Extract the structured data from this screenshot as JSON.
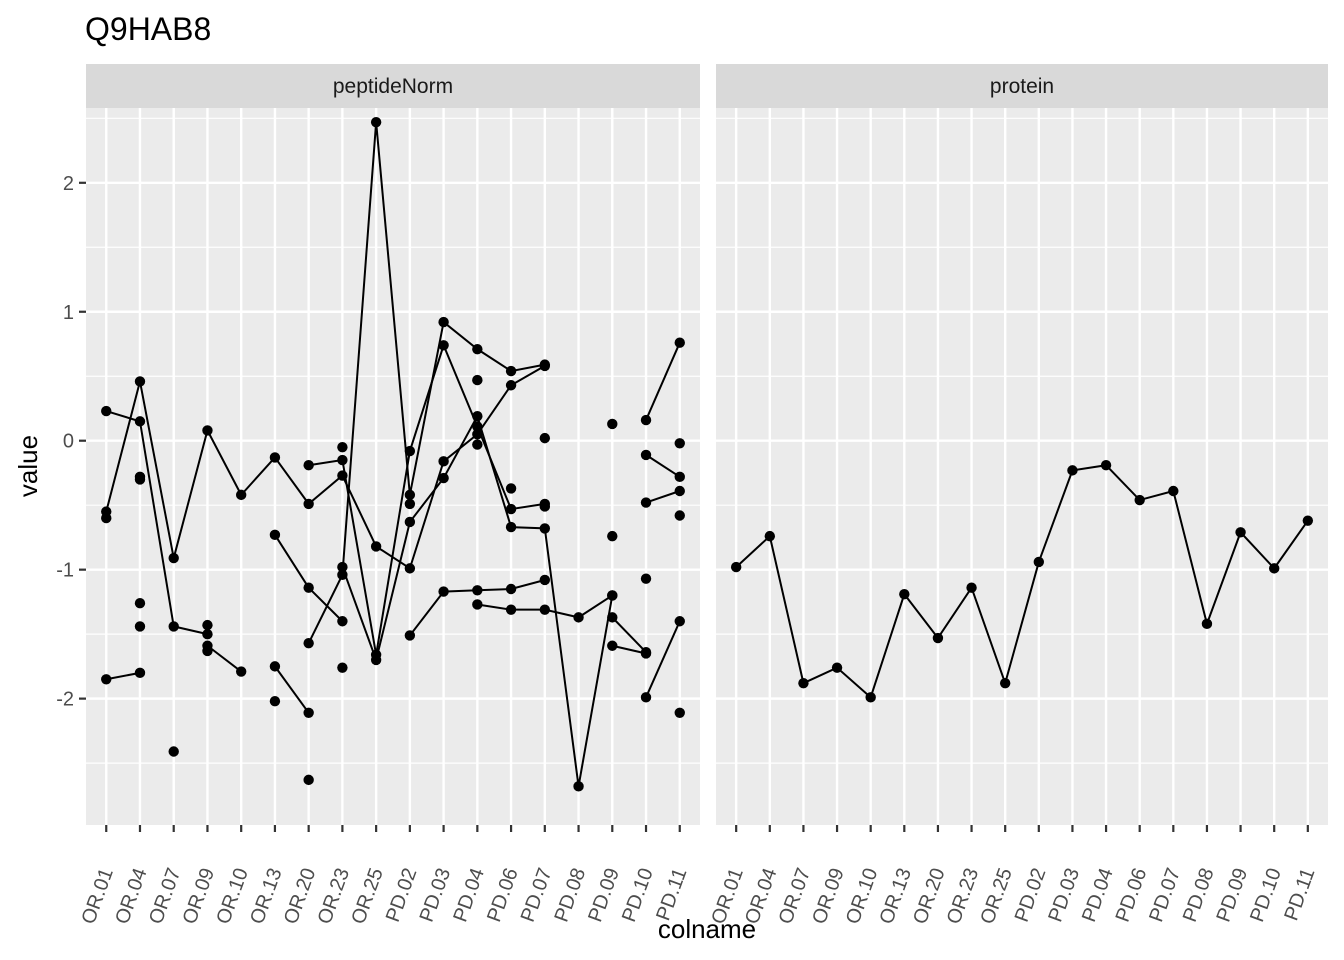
{
  "chart_data": {
    "type": "line",
    "title": "Q9HAB8",
    "xlabel": "colname",
    "ylabel": "value",
    "ylim": [
      -2.98,
      2.58
    ],
    "y_ticks": [
      -2,
      -1,
      0,
      1,
      2
    ],
    "grid": true,
    "categories": [
      "OR.01",
      "OR.04",
      "OR.07",
      "OR.09",
      "OR.10",
      "OR.13",
      "OR.20",
      "OR.23",
      "OR.25",
      "PD.02",
      "PD.03",
      "PD.04",
      "PD.06",
      "PD.07",
      "PD.08",
      "PD.09",
      "PD.10",
      "PD.11"
    ],
    "facets": [
      {
        "label": "peptideNorm",
        "series": [
          {
            "values": [
              0.23,
              0.15,
              -1.44,
              -1.5,
              null,
              null,
              -1.57,
              -1.04,
              2.47,
              -0.42,
              0.92,
              0.71,
              0.54,
              0.59,
              null,
              -1.37,
              -1.64,
              null
            ]
          },
          {
            "values": [
              -0.55,
              0.46,
              -0.91,
              0.08,
              -0.42,
              -0.13,
              -0.49,
              -0.27,
              -0.82,
              -0.99,
              -0.16,
              0.05,
              0.43,
              0.58,
              null,
              null,
              null,
              null
            ]
          },
          {
            "values": [
              -1.85,
              -1.8,
              null,
              -1.59,
              -1.79,
              null,
              null,
              null,
              null,
              null,
              null,
              null,
              null,
              null,
              null,
              null,
              null,
              null
            ]
          },
          {
            "values": [
              null,
              null,
              null,
              null,
              null,
              -0.73,
              -1.14,
              -1.4,
              null,
              null,
              null,
              null,
              null,
              null,
              null,
              null,
              null,
              null
            ]
          },
          {
            "values": [
              null,
              null,
              null,
              null,
              null,
              -1.75,
              -2.11,
              null,
              null,
              null,
              null,
              null,
              null,
              null,
              null,
              null,
              null,
              null
            ]
          },
          {
            "values": [
              null,
              null,
              null,
              null,
              null,
              null,
              -0.19,
              -0.15,
              -1.66,
              -0.08,
              0.74,
              0.11,
              -0.53,
              -0.49,
              null,
              null,
              null,
              null
            ]
          },
          {
            "values": [
              null,
              null,
              null,
              null,
              null,
              null,
              null,
              -0.98,
              -1.7,
              -0.63,
              -0.29,
              0.19,
              -0.67,
              -0.68,
              -2.68,
              -1.2,
              null,
              null
            ]
          },
          {
            "values": [
              null,
              null,
              null,
              null,
              null,
              null,
              null,
              null,
              null,
              -1.51,
              -1.17,
              -1.16,
              -1.15,
              -1.08,
              null,
              null,
              null,
              null
            ]
          },
          {
            "values": [
              null,
              null,
              null,
              null,
              null,
              null,
              null,
              null,
              null,
              null,
              null,
              -1.27,
              -1.31,
              -1.31,
              -1.37,
              -1.2,
              null,
              null
            ]
          },
          {
            "values": [
              null,
              null,
              null,
              null,
              null,
              null,
              null,
              null,
              null,
              null,
              null,
              null,
              null,
              null,
              null,
              -1.59,
              -1.65,
              null
            ]
          },
          {
            "values": [
              null,
              null,
              null,
              null,
              null,
              null,
              null,
              null,
              null,
              null,
              null,
              null,
              null,
              null,
              null,
              null,
              0.16,
              0.76
            ]
          },
          {
            "values": [
              null,
              null,
              null,
              null,
              null,
              null,
              null,
              null,
              null,
              null,
              null,
              null,
              null,
              null,
              null,
              null,
              -0.11,
              -0.28
            ]
          },
          {
            "values": [
              null,
              null,
              null,
              null,
              null,
              null,
              null,
              null,
              null,
              null,
              null,
              null,
              null,
              null,
              null,
              null,
              -0.48,
              -0.39
            ]
          },
          {
            "values": [
              null,
              null,
              null,
              null,
              null,
              null,
              null,
              null,
              null,
              null,
              null,
              null,
              null,
              null,
              null,
              null,
              -1.99,
              -1.4
            ]
          }
        ],
        "points": [
          [
            0,
            -0.6
          ],
          [
            1,
            -0.28
          ],
          [
            1,
            -0.3
          ],
          [
            1,
            -1.26
          ],
          [
            1,
            -1.44
          ],
          [
            2,
            -2.41
          ],
          [
            3,
            -1.43
          ],
          [
            3,
            -1.63
          ],
          [
            7,
            -0.05
          ],
          [
            7,
            -1.76
          ],
          [
            9,
            -0.49
          ],
          [
            11,
            0.47
          ],
          [
            11,
            -0.03
          ],
          [
            12,
            -0.37
          ],
          [
            13,
            0.02
          ],
          [
            13,
            -0.51
          ],
          [
            15,
            0.13
          ],
          [
            15,
            -0.74
          ],
          [
            16,
            -1.07
          ],
          [
            17,
            -0.02
          ],
          [
            17,
            -0.58
          ],
          [
            17,
            -2.11
          ],
          [
            6,
            -2.63
          ],
          [
            5,
            -2.02
          ]
        ]
      },
      {
        "label": "protein",
        "series": [
          {
            "values": [
              -0.98,
              -0.74,
              -1.88,
              -1.76,
              -1.99,
              -1.19,
              -1.53,
              -1.14,
              -1.88,
              -0.94,
              -0.23,
              -0.19,
              -0.46,
              -0.39,
              -1.42,
              -0.71,
              -0.99,
              -0.62
            ]
          }
        ],
        "points": []
      }
    ]
  }
}
